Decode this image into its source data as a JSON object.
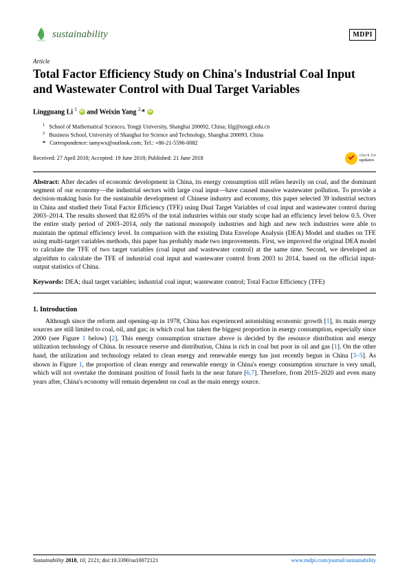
{
  "header": {
    "journal_name": "sustainability",
    "publisher": "MDPI"
  },
  "article_type": "Article",
  "title": "Total Factor Efficiency Study on China's Industrial Coal Input and Wastewater Control with Dual Target Variables",
  "authors_html": "Lingguang Li <sup>1</sup> <span class='orcid'>iD</span> and Weixin Yang <sup>2,</sup>* <span class='orcid'>iD</span>",
  "affiliations": {
    "a1": "School of Mathematical Sciences, Tongji University, Shanghai 200092, China; lilg@tongji.edu.cn",
    "a2": "Business School, University of Shanghai for Science and Technology, Shanghai 200093, China",
    "corr": "Correspondence: iamywx@outlook.com; Tel.: +86-21-5596-0082"
  },
  "dates": "Received: 27 April 2018; Accepted: 19 June 2018; Published: 21 June 2018",
  "check_updates": {
    "line1": "check for",
    "line2": "updates"
  },
  "abstract_label": "Abstract:",
  "abstract": "After decades of economic development in China, its energy consumption still relies heavily on coal, and the dominant segment of our economy—the industrial sectors with large coal input—have caused massive wastewater pollution. To provide a decision-making basis for the sustainable development of Chinese industry and economy, this paper selected 39 industrial sectors in China and studied their Total Factor Efficiency (TFE) using Dual Target Variables of coal input and wastewater control during 2003–2014. The results showed that 82.05% of the total industries within our study scope had an efficiency level below 0.5. Over the entire study period of 2003–2014, only the national monopoly industries and high and new tech industries were able to maintain the optimal efficiency level. In comparison with the existing Data Envelope Analysis (DEA) Model and studies on TFE using multi-target variables methods, this paper has probably made two improvements. First, we improved the original DEA model to calculate the TFE of two target variables (coal input and wastewater control) at the same time. Second, we developed an algorithm to calculate the TFE of industrial coal input and wastewater control from 2003 to 2014, based on the official input-output statistics of China.",
  "keywords_label": "Keywords:",
  "keywords": "DEA; dual target variables; industrial coal input; wastewater control; Total Factor Efficiency (TFE)",
  "section1": {
    "heading": "1. Introduction",
    "para1": "Although since the reform and opening-up in 1978, China has experienced astonishing economic growth [1], its main energy sources are still limited to coal, oil, and gas; in which coal has taken the biggest proportion in energy consumption, especially since 2000 (see Figure 1 below) [2]. This energy consumption structure above is decided by the resource distribution and energy utilization technology of China. In resource reserve and distribution, China is rich in coal but poor in oil and gas [1]. On the other hand, the utilization and technology related to clean energy and renewable energy has just recently begun in China [3–5]. As shown in Figure 1, the proportion of clean energy and renewable energy in China's energy consumption structure is very small, which will not overtake the dominant position of fossil fuels in the near future [6,7]. Therefore, from 2015–2020 and even many years after, China's economy will remain dependent on coal as the main energy source."
  },
  "footer": {
    "left_journal": "Sustainability",
    "left_year": "2018",
    "left_vol": "10",
    "left_page": "2121",
    "left_doi": "doi:10.3390/su10072121",
    "right_url": "www.mdpi.com/journal/sustainability"
  },
  "colors": {
    "link": "#0066cc",
    "journal_green": "#3a6b3a",
    "orcid_green": "#a6ce39",
    "check_yellow": "#ffc107",
    "check_mark": "#c62828"
  }
}
